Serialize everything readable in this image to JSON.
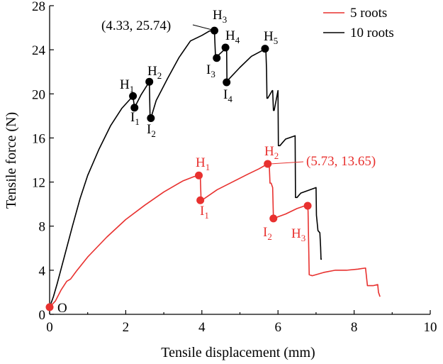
{
  "chart_data": {
    "type": "line",
    "xlabel": "Tensile displacement (mm)",
    "ylabel": "Tensile force (N)",
    "xlim": [
      0,
      10
    ],
    "ylim": [
      0,
      28
    ],
    "x_ticks": [
      0,
      2,
      4,
      6,
      8,
      10
    ],
    "y_ticks": [
      0,
      4,
      8,
      12,
      16,
      20,
      24,
      28
    ],
    "grid": false,
    "legend_position": "top-right",
    "colors": {
      "5 roots": "#e8312f",
      "10 roots": "#000000"
    },
    "series": [
      {
        "name": "5 roots",
        "color": "#e8312f",
        "x": [
          0,
          0.15,
          0.3,
          0.45,
          0.55,
          0.7,
          1.0,
          1.5,
          2.0,
          2.5,
          3.0,
          3.5,
          3.8,
          3.94,
          3.96,
          3.98,
          4.4,
          4.8,
          5.2,
          5.5,
          5.73,
          5.75,
          5.77,
          5.79,
          5.82,
          5.86,
          5.88,
          6.2,
          6.5,
          6.75,
          6.78,
          6.79,
          6.82,
          6.9,
          7.2,
          7.5,
          7.8,
          8.1,
          8.3,
          8.35,
          8.36,
          8.5,
          8.62,
          8.64,
          8.68
        ],
        "y": [
          0.65,
          1.2,
          2.2,
          3.0,
          3.2,
          3.9,
          5.2,
          7.0,
          8.6,
          9.9,
          11.1,
          12.1,
          12.5,
          12.6,
          12.4,
          10.3,
          11.3,
          12.0,
          12.7,
          13.2,
          13.65,
          13.7,
          13.6,
          11.9,
          11.9,
          11.5,
          8.7,
          9.1,
          9.6,
          9.9,
          9.6,
          9.4,
          3.6,
          3.5,
          3.8,
          4.0,
          4.0,
          4.1,
          4.2,
          2.6,
          2.6,
          2.6,
          2.7,
          2.0,
          1.6
        ]
      },
      {
        "name": "10 roots",
        "color": "#000000",
        "x": [
          0,
          0.1,
          0.2,
          0.4,
          0.6,
          0.8,
          1.0,
          1.3,
          1.6,
          1.9,
          2.19,
          2.23,
          2.4,
          2.62,
          2.64,
          2.66,
          2.8,
          3.1,
          3.4,
          3.7,
          4.0,
          4.2,
          4.33,
          4.36,
          4.37,
          4.4,
          4.65,
          4.66,
          4.67,
          4.7,
          5.0,
          5.3,
          5.68,
          5.7,
          5.71,
          5.73,
          5.85,
          5.86,
          5.88,
          5.9,
          6.0,
          6.01,
          6.05,
          6.2,
          6.45,
          6.46,
          6.5,
          6.6,
          7.0,
          7.01,
          7.05,
          7.1,
          7.12,
          7.13,
          7.15
        ],
        "y": [
          0.65,
          1.6,
          2.8,
          5.4,
          8.0,
          10.5,
          12.6,
          15.0,
          17.1,
          18.7,
          19.8,
          18.75,
          19.9,
          21.1,
          17.8,
          17.8,
          19.4,
          21.4,
          23.3,
          24.8,
          25.3,
          25.7,
          25.74,
          23.2,
          23.2,
          23.4,
          24.2,
          21.0,
          21.0,
          21.3,
          22.4,
          23.4,
          24.1,
          22.1,
          19.6,
          19.6,
          20.3,
          20.3,
          18.5,
          18.5,
          20.3,
          15.3,
          15.3,
          15.9,
          16.2,
          10.6,
          10.6,
          11.0,
          11.5,
          9.0,
          7.6,
          7.4,
          6.1,
          5.0,
          5.0
        ]
      }
    ],
    "points": {
      "5 roots": [
        {
          "label": "O",
          "x": 0,
          "y": 0.65
        },
        {
          "label": "H1",
          "x": 3.92,
          "y": 12.6
        },
        {
          "label": "I1",
          "x": 3.96,
          "y": 10.35
        },
        {
          "label": "H2",
          "x": 5.73,
          "y": 13.65
        },
        {
          "label": "I2",
          "x": 5.88,
          "y": 8.7
        },
        {
          "label": "H3",
          "x": 6.78,
          "y": 9.85
        }
      ],
      "10 roots": [
        {
          "label": "H1",
          "x": 2.19,
          "y": 19.8
        },
        {
          "label": "I1",
          "x": 2.23,
          "y": 18.75
        },
        {
          "label": "H2",
          "x": 2.62,
          "y": 21.1
        },
        {
          "label": "I2",
          "x": 2.66,
          "y": 17.8
        },
        {
          "label": "H3",
          "x": 4.33,
          "y": 25.74
        },
        {
          "label": "I3",
          "x": 4.39,
          "y": 23.25
        },
        {
          "label": "H4",
          "x": 4.62,
          "y": 24.2
        },
        {
          "label": "I4",
          "x": 4.65,
          "y": 21.05
        },
        {
          "label": "H5",
          "x": 5.66,
          "y": 24.1
        }
      ]
    },
    "annotations": {
      "peak_10": "(4.33, 25.74)",
      "peak_5": "(5.73, 13.65)",
      "origin": "O",
      "black_labels": [
        {
          "main": "H",
          "sub": "1"
        },
        {
          "main": "I",
          "sub": "1"
        },
        {
          "main": "H",
          "sub": "2"
        },
        {
          "main": "I",
          "sub": "2"
        },
        {
          "main": "H",
          "sub": "3"
        },
        {
          "main": "I",
          "sub": "3"
        },
        {
          "main": "H",
          "sub": "4"
        },
        {
          "main": "I",
          "sub": "4"
        },
        {
          "main": "H",
          "sub": "5"
        }
      ],
      "red_labels": [
        {
          "main": "H",
          "sub": "1"
        },
        {
          "main": "I",
          "sub": "1"
        },
        {
          "main": "H",
          "sub": "2"
        },
        {
          "main": "I",
          "sub": "2"
        },
        {
          "main": "H",
          "sub": "3"
        }
      ]
    }
  }
}
